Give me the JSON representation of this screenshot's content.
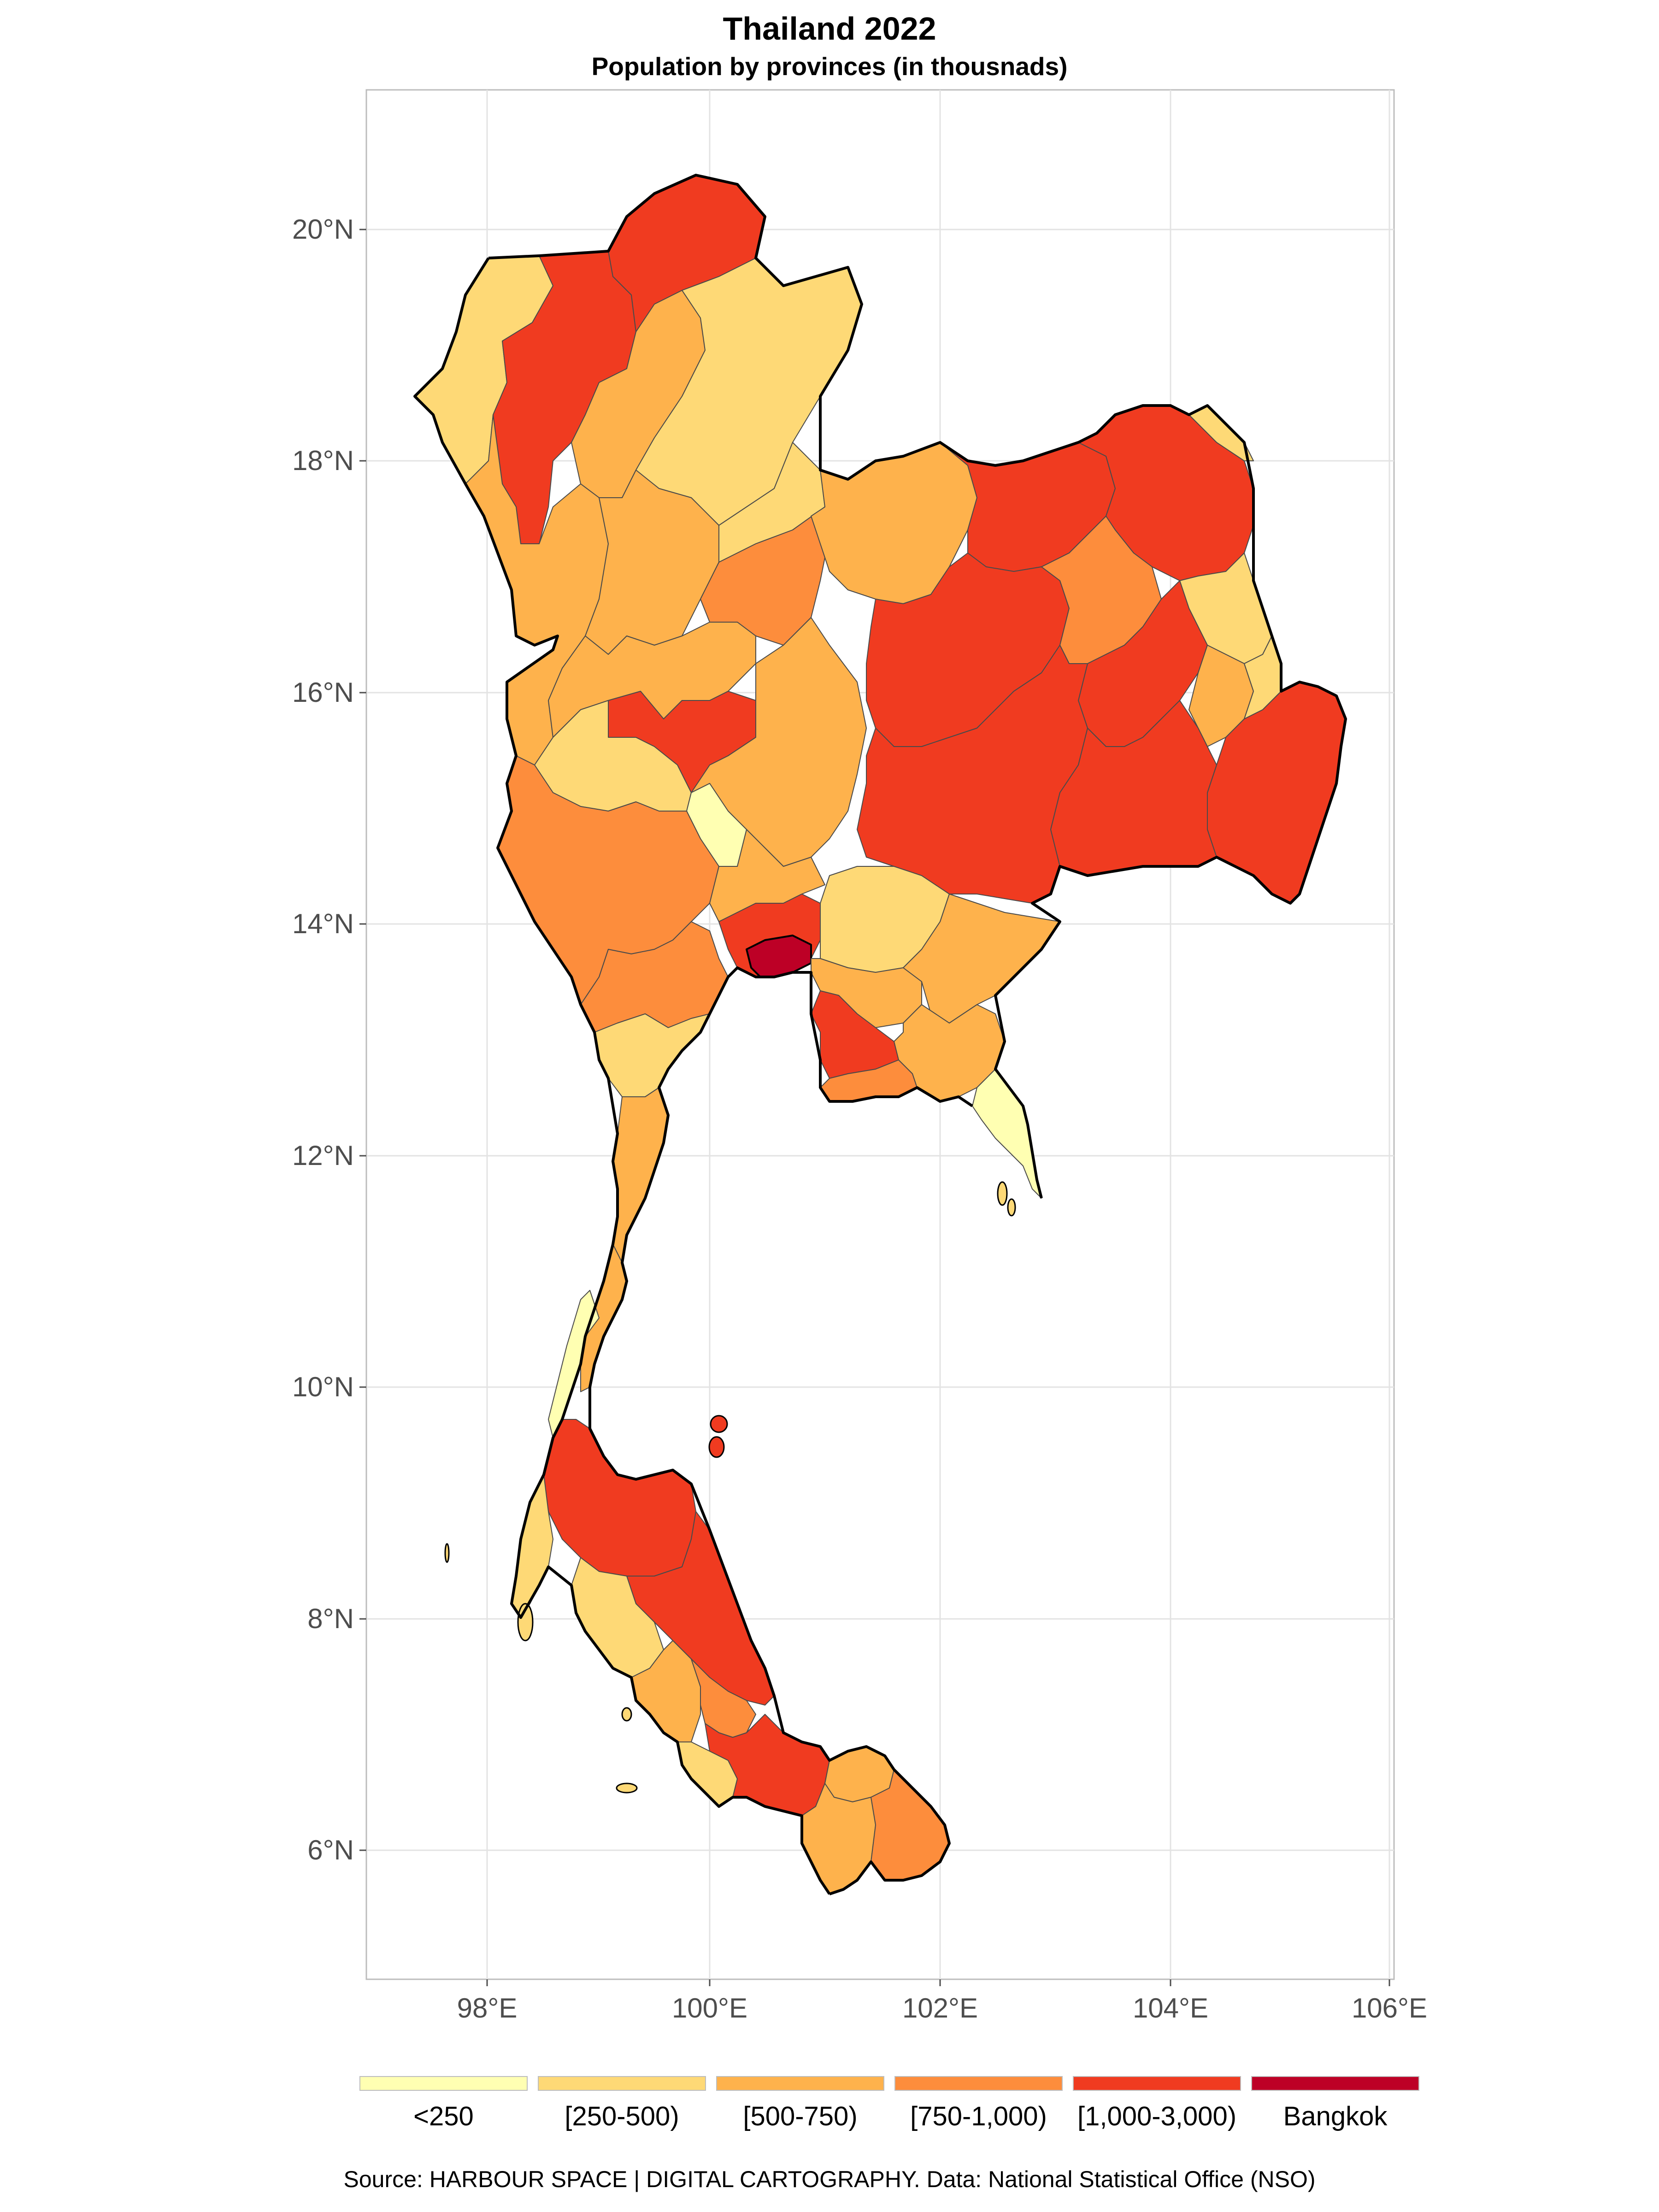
{
  "header": {
    "title": "Thailand 2022",
    "subtitle": "Population by provinces (in thousnads)"
  },
  "axes": {
    "lat_ticks": [
      "20°N",
      "18°N",
      "16°N",
      "14°N",
      "12°N",
      "10°N",
      "8°N",
      "6°N"
    ],
    "lon_ticks": [
      "98°E",
      "100°E",
      "102°E",
      "104°E",
      "106°E"
    ],
    "lat_range": [
      4.8,
      21.2
    ],
    "lon_range": [
      96.9,
      106.1
    ]
  },
  "legend": {
    "items": [
      {
        "label": "<250",
        "color": "#ffffb2"
      },
      {
        "label": "[250-500)",
        "color": "#fed976"
      },
      {
        "label": "[500-750)",
        "color": "#feb24c"
      },
      {
        "label": "[750-1,000)",
        "color": "#fd8d3c"
      },
      {
        "label": "[1,000-3,000)",
        "color": "#f03b20"
      },
      {
        "label": "Bangkok",
        "color": "#bd0026"
      }
    ]
  },
  "caption": "Source: HARBOUR SPACE | DIGITAL CARTOGRAPHY. Data: National Statistical Office (NSO)"
}
